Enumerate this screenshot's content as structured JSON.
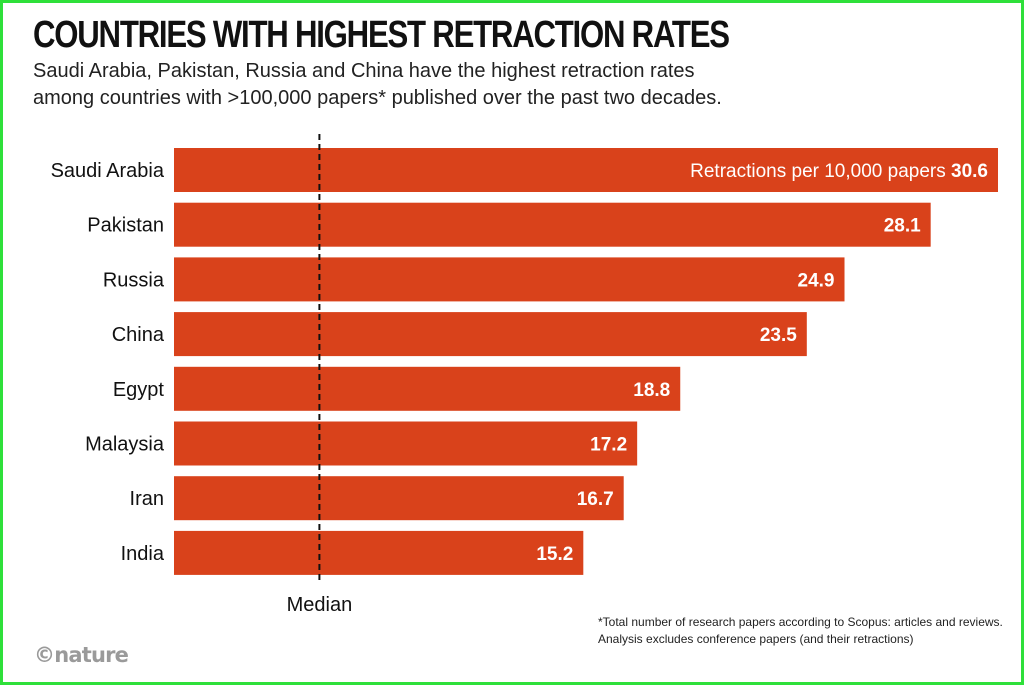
{
  "title": "COUNTRIES WITH HIGHEST RETRACTION RATES",
  "subtitle_lines": [
    "Saudi Arabia, Pakistan, Russia and China have the highest retraction rates",
    "among countries with >100,000 papers* published over the past two decades."
  ],
  "footnote": "*Total number of research papers according to Scopus: articles and reviews. Analysis excludes conference papers (and their retractions)",
  "logo": "©nature",
  "colors": {
    "bar": "#d9421b",
    "frame": "#2fe03a",
    "text": "#111111",
    "median_line": "#111111"
  },
  "chart_data": {
    "type": "bar",
    "orientation": "horizontal",
    "categories": [
      "Saudi Arabia",
      "Pakistan",
      "Russia",
      "China",
      "Egypt",
      "Malaysia",
      "Iran",
      "India"
    ],
    "values": [
      30.6,
      28.1,
      24.9,
      23.5,
      18.8,
      17.2,
      16.7,
      15.2
    ],
    "value_label_prefix": "Retractions per 10,000 papers",
    "median_label": "Median",
    "median_value": 5.4,
    "xlim": [
      0,
      30.6
    ],
    "grid": false
  }
}
